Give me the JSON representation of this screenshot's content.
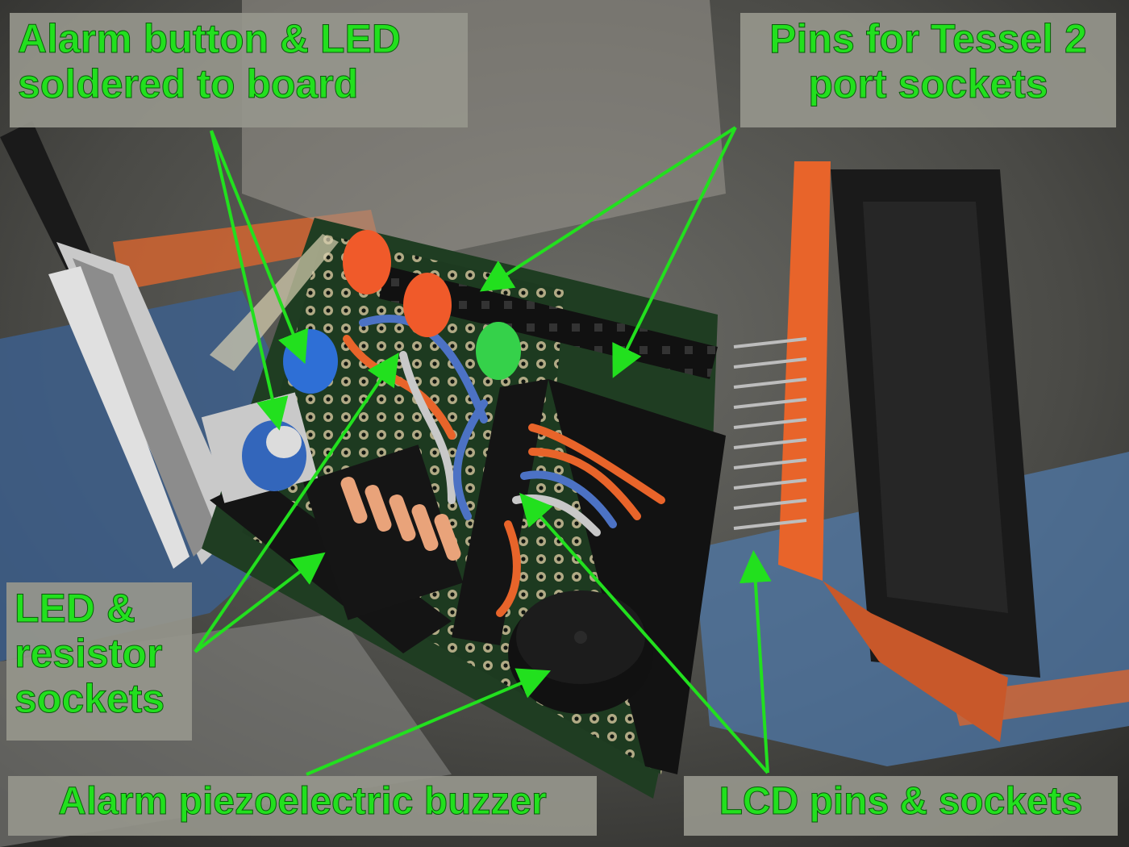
{
  "labels": {
    "alarm_button": [
      "Alarm button & LED",
      "soldered to board"
    ],
    "tessel_pins": [
      "Pins for Tessel 2",
      "port sockets"
    ],
    "led_resistor": [
      "LED &",
      "resistor",
      "sockets"
    ],
    "buzzer": [
      "Alarm piezoelectric buzzer"
    ],
    "lcd": [
      "LCD pins & sockets"
    ]
  },
  "colors": {
    "label_text": "#22e01e",
    "arrow": "#22e01e",
    "label_bg": "#96968c",
    "pcb_green": "#1f3d22",
    "pcb_black": "#141414",
    "led_orange": "#f05a2a",
    "led_green": "#35d14a",
    "button_blue": "#2e6fd6",
    "lcd_orange": "#e8642a"
  }
}
